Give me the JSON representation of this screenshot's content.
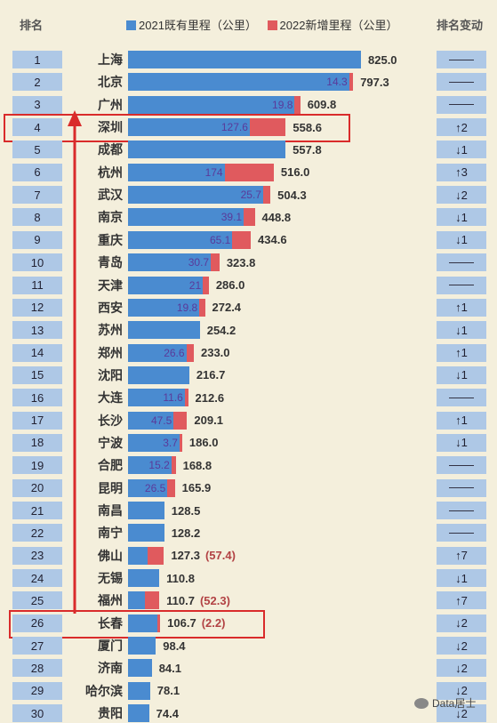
{
  "header": {
    "rank_label": "排名",
    "change_label": "排名变动"
  },
  "colors": {
    "base": "#4a8bd0",
    "added": "#e05a5e",
    "box": "#aec8e6",
    "highlight": "#d92b2b"
  },
  "chart_data": {
    "type": "bar",
    "orientation": "horizontal-stacked",
    "series": [
      {
        "name": "2021既有里程（公里）",
        "color": "#4a8bd0"
      },
      {
        "name": "2022新增里程（公里）",
        "color": "#e05a5e"
      }
    ],
    "rows": [
      {
        "rank": "1",
        "city": "上海",
        "base": 825.0,
        "added": 0,
        "added_label": "",
        "total": "825.0",
        "paren": "",
        "change": "—"
      },
      {
        "rank": "2",
        "city": "北京",
        "base": 783.0,
        "added": 14.3,
        "added_label": "14.3",
        "total": "797.3",
        "paren": "",
        "change": "—"
      },
      {
        "rank": "3",
        "city": "广州",
        "base": 590.1,
        "added": 19.8,
        "added_label": "19.8",
        "total": "609.8",
        "paren": "",
        "change": "—"
      },
      {
        "rank": "4",
        "city": "深圳",
        "base": 431.0,
        "added": 127.6,
        "added_label": "127.6",
        "total": "558.6",
        "paren": "",
        "change": "↑2"
      },
      {
        "rank": "5",
        "city": "成都",
        "base": 557.8,
        "added": 0,
        "added_label": "",
        "total": "557.8",
        "paren": "",
        "change": "↓1"
      },
      {
        "rank": "6",
        "city": "杭州",
        "base": 342.0,
        "added": 174,
        "added_label": "174",
        "total": "516.0",
        "paren": "",
        "change": "↑3"
      },
      {
        "rank": "7",
        "city": "武汉",
        "base": 478.6,
        "added": 25.7,
        "added_label": "25.7",
        "total": "504.3",
        "paren": "",
        "change": "↓2"
      },
      {
        "rank": "8",
        "city": "南京",
        "base": 409.7,
        "added": 39.1,
        "added_label": "39.1",
        "total": "448.8",
        "paren": "",
        "change": "↓1"
      },
      {
        "rank": "9",
        "city": "重庆",
        "base": 369.5,
        "added": 65.1,
        "added_label": "65.1",
        "total": "434.6",
        "paren": "",
        "change": "↓1"
      },
      {
        "rank": "10",
        "city": "青岛",
        "base": 293.1,
        "added": 30.7,
        "added_label": "30.7",
        "total": "323.8",
        "paren": "",
        "change": "—"
      },
      {
        "rank": "11",
        "city": "天津",
        "base": 265.0,
        "added": 21,
        "added_label": "21",
        "total": "286.0",
        "paren": "",
        "change": "—"
      },
      {
        "rank": "12",
        "city": "西安",
        "base": 252.6,
        "added": 19.8,
        "added_label": "19.8",
        "total": "272.4",
        "paren": "",
        "change": "↑1"
      },
      {
        "rank": "13",
        "city": "苏州",
        "base": 254.2,
        "added": 0,
        "added_label": "",
        "total": "254.2",
        "paren": "",
        "change": "↓1"
      },
      {
        "rank": "14",
        "city": "郑州",
        "base": 206.4,
        "added": 26.6,
        "added_label": "26.6",
        "total": "233.0",
        "paren": "",
        "change": "↑1"
      },
      {
        "rank": "15",
        "city": "沈阳",
        "base": 216.7,
        "added": 0,
        "added_label": "",
        "total": "216.7",
        "paren": "",
        "change": "↓1"
      },
      {
        "rank": "16",
        "city": "大连",
        "base": 201.0,
        "added": 11.6,
        "added_label": "11.6",
        "total": "212.6",
        "paren": "",
        "change": "—"
      },
      {
        "rank": "17",
        "city": "长沙",
        "base": 161.6,
        "added": 47.5,
        "added_label": "47.5",
        "total": "209.1",
        "paren": "",
        "change": "↑1"
      },
      {
        "rank": "18",
        "city": "宁波",
        "base": 182.3,
        "added": 3.7,
        "added_label": "3.7",
        "total": "186.0",
        "paren": "",
        "change": "↓1"
      },
      {
        "rank": "19",
        "city": "合肥",
        "base": 153.6,
        "added": 15.2,
        "added_label": "15.2",
        "total": "168.8",
        "paren": "",
        "change": "—"
      },
      {
        "rank": "20",
        "city": "昆明",
        "base": 139.4,
        "added": 26.5,
        "added_label": "26.5",
        "total": "165.9",
        "paren": "",
        "change": "—"
      },
      {
        "rank": "21",
        "city": "南昌",
        "base": 128.5,
        "added": 0,
        "added_label": "",
        "total": "128.5",
        "paren": "",
        "change": "—"
      },
      {
        "rank": "22",
        "city": "南宁",
        "base": 128.2,
        "added": 0,
        "added_label": "",
        "total": "128.2",
        "paren": "",
        "change": "—"
      },
      {
        "rank": "23",
        "city": "佛山",
        "base": 69.9,
        "added": 57.4,
        "added_label": "",
        "total": "127.3",
        "paren": "(57.4)",
        "change": "↑7"
      },
      {
        "rank": "24",
        "city": "无锡",
        "base": 110.8,
        "added": 0,
        "added_label": "",
        "total": "110.8",
        "paren": "",
        "change": "↓1"
      },
      {
        "rank": "25",
        "city": "福州",
        "base": 58.4,
        "added": 52.3,
        "added_label": "",
        "total": "110.7",
        "paren": "(52.3)",
        "change": "↑7"
      },
      {
        "rank": "26",
        "city": "长春",
        "base": 104.5,
        "added": 2.2,
        "added_label": "",
        "total": "106.7",
        "paren": "(2.2)",
        "change": "↓2"
      },
      {
        "rank": "27",
        "city": "厦门",
        "base": 98.4,
        "added": 0,
        "added_label": "",
        "total": "98.4",
        "paren": "",
        "change": "↓2"
      },
      {
        "rank": "28",
        "city": "济南",
        "base": 84.1,
        "added": 0,
        "added_label": "",
        "total": "84.1",
        "paren": "",
        "change": "↓2"
      },
      {
        "rank": "29",
        "city": "哈尔滨",
        "base": 78.1,
        "added": 0,
        "added_label": "",
        "total": "78.1",
        "paren": "",
        "change": "↓2"
      },
      {
        "rank": "30",
        "city": "贵阳",
        "base": 74.4,
        "added": 0,
        "added_label": "",
        "total": "74.4",
        "paren": "",
        "change": "↓2"
      }
    ],
    "highlight_ranks": [
      "4",
      "26"
    ],
    "xlim": [
      0,
      825
    ]
  },
  "watermark": {
    "text": "Data居士",
    "icon": "wechat-icon"
  }
}
